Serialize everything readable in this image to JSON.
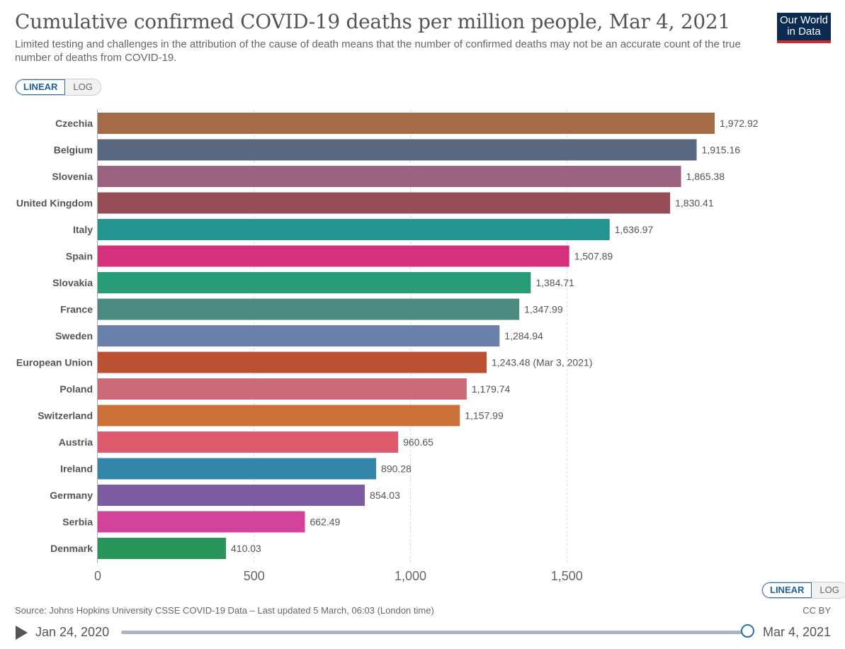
{
  "header": {
    "title": "Cumulative confirmed COVID-19 deaths per million people, Mar 4, 2021",
    "subtitle": "Limited testing and challenges in the attribution of the cause of death means that the number of confirmed deaths may not be an accurate count of the true number of deaths from COVID-19.",
    "logo_line1": "Our World",
    "logo_line2": "in Data"
  },
  "scale_toggle": {
    "linear": "LINEAR",
    "log": "LOG",
    "selected": "LINEAR"
  },
  "chart_data": {
    "type": "bar",
    "orientation": "horizontal",
    "title": "Cumulative confirmed COVID-19 deaths per million people, Mar 4, 2021",
    "xlim": [
      0,
      2000
    ],
    "x_ticks": [
      0,
      500,
      1000,
      1500
    ],
    "x_tick_labels": [
      "0",
      "500",
      "1,000",
      "1,500"
    ],
    "grid": "vertical-dashed",
    "categories": [
      "Czechia",
      "Belgium",
      "Slovenia",
      "United Kingdom",
      "Italy",
      "Spain",
      "Slovakia",
      "France",
      "Sweden",
      "European Union",
      "Poland",
      "Switzerland",
      "Austria",
      "Ireland",
      "Germany",
      "Serbia",
      "Denmark"
    ],
    "values": [
      1972.92,
      1915.16,
      1865.38,
      1830.41,
      1636.97,
      1507.89,
      1384.71,
      1347.99,
      1284.94,
      1243.48,
      1179.74,
      1157.99,
      960.65,
      890.28,
      854.03,
      662.49,
      410.03
    ],
    "value_labels": [
      "1,972.92",
      "1,915.16",
      "1,865.38",
      "1,830.41",
      "1,636.97",
      "1,507.89",
      "1,384.71",
      "1,347.99",
      "1,284.94",
      "1,243.48 (Mar 3, 2021)",
      "1,179.74",
      "1,157.99",
      "960.65",
      "890.28",
      "854.03",
      "662.49",
      "410.03"
    ],
    "colors": [
      "#a56a48",
      "#596880",
      "#9b6180",
      "#974d56",
      "#239490",
      "#d6317d",
      "#279c77",
      "#4b8b7f",
      "#6981ab",
      "#bb5130",
      "#cc6a7a",
      "#ca7139",
      "#dd5b6c",
      "#3386aa",
      "#7e5ca2",
      "#d3439b",
      "#2a955b"
    ]
  },
  "footer": {
    "source": "Source: Johns Hopkins University CSSE COVID-19 Data – Last updated 5 March, 06:03 (London time)",
    "license": "CC BY"
  },
  "timeline": {
    "start": "Jan 24, 2020",
    "end": "Mar 4, 2021"
  }
}
